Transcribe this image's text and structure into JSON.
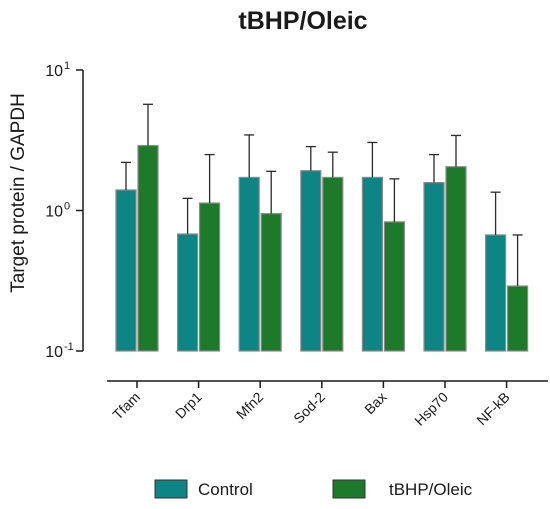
{
  "chart_data": {
    "type": "bar",
    "title": "tBHP/Oleic",
    "xlabel": "",
    "ylabel": "Target protein / GAPDH",
    "yscale": "log",
    "ylim": [
      0.1,
      10
    ],
    "yticks": [
      {
        "base": "10",
        "exp": "1",
        "value": 10
      },
      {
        "base": "10",
        "exp": "0",
        "value": 1
      },
      {
        "base": "10",
        "exp": "-1",
        "value": 0.1
      }
    ],
    "grid": false,
    "legend_position": "bottom",
    "categories": [
      "Tfam",
      "Drp1",
      "Mfn2",
      "Sod-2",
      "Bax",
      "Hsp70",
      "NF-kB"
    ],
    "series": [
      {
        "name": "Control",
        "color": "#0e8585",
        "values": [
          1.4,
          0.68,
          1.72,
          1.92,
          1.72,
          1.58,
          0.67
        ],
        "error_upper": [
          2.2,
          1.22,
          3.45,
          2.85,
          3.05,
          2.5,
          1.35
        ]
      },
      {
        "name": "tBHP/Oleic",
        "color": "#1d7a2a",
        "values": [
          2.9,
          1.13,
          0.95,
          1.72,
          0.83,
          2.05,
          0.29
        ],
        "error_upper": [
          5.7,
          2.5,
          1.9,
          2.6,
          1.68,
          3.42,
          0.67
        ]
      }
    ]
  }
}
